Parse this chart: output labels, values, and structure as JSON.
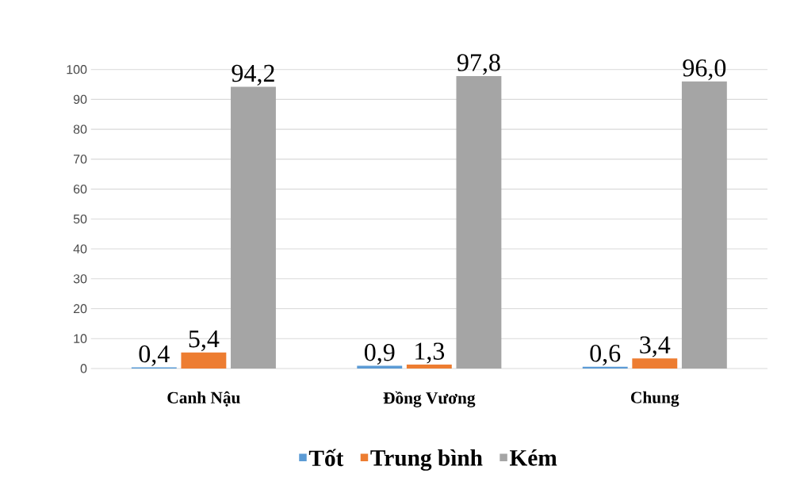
{
  "chart_data": {
    "type": "bar",
    "categories": [
      "Canh Nậu",
      "Đồng Vương",
      "Chung"
    ],
    "series": [
      {
        "name": "Tốt",
        "color": "#5b9bd5",
        "values": [
          0.4,
          0.9,
          0.6
        ],
        "value_labels": [
          "0,4",
          "0,9",
          "0,6"
        ]
      },
      {
        "name": "Trung bình",
        "color": "#ed7d31",
        "values": [
          5.4,
          1.3,
          3.4
        ],
        "value_labels": [
          "5,4",
          "1,3",
          "3,4"
        ]
      },
      {
        "name": "Kém",
        "color": "#a5a5a5",
        "values": [
          94.2,
          97.8,
          96.0
        ],
        "value_labels": [
          "94,2",
          "97,8",
          "96,0"
        ]
      }
    ],
    "ylim": [
      0,
      100
    ],
    "yticks": [
      0,
      10,
      20,
      30,
      40,
      50,
      60,
      70,
      80,
      90,
      100
    ],
    "grid": "y",
    "legend": "bottom"
  }
}
